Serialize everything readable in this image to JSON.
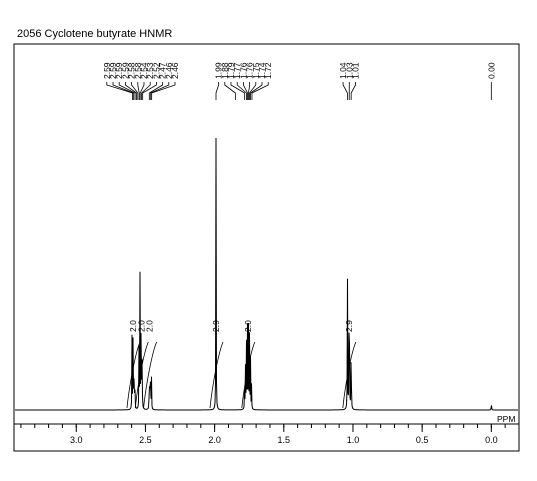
{
  "chart_data": {
    "type": "line",
    "title": "2056  Cyclotene butyrate HNMR",
    "xlabel": "PPM",
    "ylabel": "",
    "xlim": [
      3.45,
      -0.2
    ],
    "x_reversed": true,
    "xticks_major": [
      "3.0",
      "2.5",
      "2.0",
      "1.5",
      "1.0",
      "0.5",
      "0.0"
    ],
    "xticks_major_values": [
      3.0,
      2.5,
      2.0,
      1.5,
      1.0,
      0.5,
      0.0
    ],
    "xtick_minor_step": 0.1,
    "grid": false,
    "peak_labels": [
      {
        "group": "a",
        "values": [
          "2.59",
          "2.59",
          "2.59",
          "2.59",
          "2.58",
          "2.58",
          "2.54",
          "2.53",
          "2.52",
          "2.47",
          "2.46",
          "2.46"
        ],
        "ppm": [
          2.593,
          2.585,
          2.575,
          2.565,
          2.555,
          2.545,
          2.538,
          2.528,
          2.52,
          2.472,
          2.462,
          2.455
        ]
      },
      {
        "group": "b",
        "values": [
          "1.99",
          "1.88",
          "1.79",
          "1.77",
          "1.76",
          "1.76",
          "1.75",
          "1.74",
          "1.72"
        ],
        "ppm": [
          1.99,
          1.85,
          1.783,
          1.77,
          1.762,
          1.755,
          1.748,
          1.74,
          1.73
        ]
      },
      {
        "group": "c",
        "values": [
          "1.04",
          "1.03",
          "1.01"
        ],
        "ppm": [
          1.04,
          1.027,
          1.013
        ]
      },
      {
        "group": "d",
        "values": [
          "0.00"
        ],
        "ppm": [
          0.0
        ]
      }
    ],
    "integrations": [
      {
        "label": "2.0",
        "ppm": 2.59
      },
      {
        "label": "2.0",
        "ppm": 2.53
      },
      {
        "label": "2.0",
        "ppm": 2.47
      },
      {
        "label": "2.9",
        "ppm": 1.99
      },
      {
        "label": "2.0",
        "ppm": 1.76
      },
      {
        "label": "2.9",
        "ppm": 1.03
      }
    ],
    "peaks": [
      {
        "ppm": 2.597,
        "height": 0.27
      },
      {
        "ppm": 2.59,
        "height": 0.25
      },
      {
        "ppm": 2.584,
        "height": 0.22
      },
      {
        "ppm": 2.577,
        "height": 0.18
      },
      {
        "ppm": 2.546,
        "height": 0.26
      },
      {
        "ppm": 2.539,
        "height": 0.52
      },
      {
        "ppm": 2.531,
        "height": 0.47
      },
      {
        "ppm": 2.524,
        "height": 0.25
      },
      {
        "ppm": 2.472,
        "height": 0.17
      },
      {
        "ppm": 2.465,
        "height": 0.26
      },
      {
        "ppm": 2.457,
        "height": 0.17
      },
      {
        "ppm": 1.99,
        "height": 1.0
      },
      {
        "ppm": 1.783,
        "height": 0.11
      },
      {
        "ppm": 1.776,
        "height": 0.22
      },
      {
        "ppm": 1.769,
        "height": 0.29
      },
      {
        "ppm": 1.762,
        "height": 0.32
      },
      {
        "ppm": 1.755,
        "height": 0.3
      },
      {
        "ppm": 1.748,
        "height": 0.27
      },
      {
        "ppm": 1.741,
        "height": 0.2
      },
      {
        "ppm": 1.733,
        "height": 0.1
      },
      {
        "ppm": 1.04,
        "height": 0.54
      },
      {
        "ppm": 1.027,
        "height": 0.84
      },
      {
        "ppm": 1.013,
        "height": 0.35
      },
      {
        "ppm": 0.0,
        "height": 0.035
      }
    ]
  }
}
